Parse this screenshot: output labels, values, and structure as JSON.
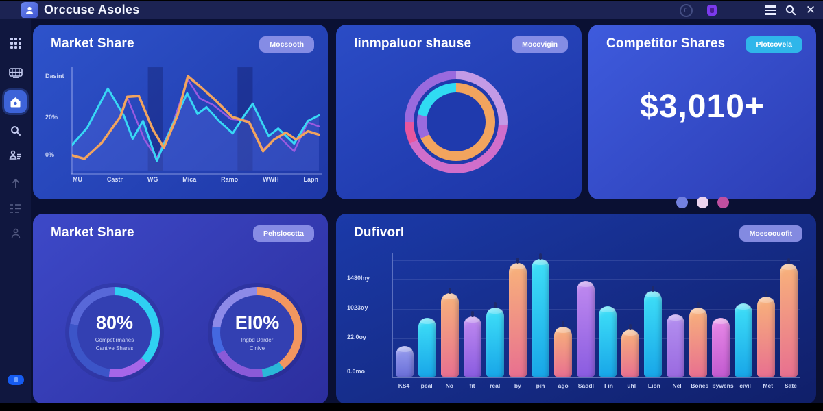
{
  "topbar": {
    "title": "Orccuse Asoles",
    "icons": [
      "help-icon",
      "notification-icon",
      "menu-icon",
      "search-icon",
      "close-icon"
    ]
  },
  "sidebar": {
    "items": [
      "apps-grid",
      "keyboard",
      "home",
      "search",
      "team",
      "upload",
      "tasks",
      "profile"
    ],
    "active": "home"
  },
  "cards": {
    "line": {
      "title": "Market Share",
      "badge": "Mocsooth"
    },
    "donut": {
      "title": "linmpaluor shause",
      "badge": "Mocovigin"
    },
    "metric": {
      "title": "Competitor Shares",
      "badge": "Plotcovela",
      "value": "$3,010+"
    },
    "gauges": {
      "title": "Market Share",
      "badge": "Pehslocctta",
      "g1": {
        "value": "80%",
        "line1": "Competirmaries",
        "line2": "Cantive Shares"
      },
      "g2": {
        "value": "EI0%",
        "line1": "Ingbd Darder",
        "line2": "Cinive"
      }
    },
    "bars": {
      "title": "Dufivorl",
      "badge": "Moesoouofit"
    }
  },
  "metric_dots": [
    "#7381e0",
    "#ecd4ef",
    "#bf4fa0"
  ],
  "chart_data": [
    {
      "id": "market-share-line",
      "type": "line",
      "title": "Market Share",
      "y_ticks": [
        "Dasint",
        "20%",
        "0%"
      ],
      "x_labels": [
        "MU",
        "Castr",
        "WG",
        "Mica",
        "Ramo",
        "WWH",
        "Lapn"
      ],
      "grid": "off",
      "legend": "none",
      "series": [
        {
          "name": "cyan",
          "color": "#38d8f5",
          "width": 3,
          "points": [
            [
              0,
              113
            ],
            [
              22,
              88
            ],
            [
              52,
              31
            ],
            [
              75,
              70
            ],
            [
              88,
              104
            ],
            [
              103,
              78
            ],
            [
              123,
              136
            ],
            [
              145,
              85
            ],
            [
              167,
              38
            ],
            [
              182,
              68
            ],
            [
              195,
              58
            ],
            [
              213,
              78
            ],
            [
              233,
              96
            ],
            [
              250,
              70
            ],
            [
              262,
              53
            ],
            [
              285,
              100
            ],
            [
              299,
              89
            ],
            [
              322,
              111
            ],
            [
              342,
              78
            ],
            [
              358,
              70
            ]
          ]
        },
        {
          "name": "orange",
          "color": "#f2a45e",
          "width": 3.5,
          "points": [
            [
              0,
              128
            ],
            [
              18,
              133
            ],
            [
              43,
              110
            ],
            [
              70,
              72
            ],
            [
              80,
              43
            ],
            [
              97,
              42
            ],
            [
              117,
              90
            ],
            [
              133,
              117
            ],
            [
              153,
              70
            ],
            [
              168,
              13
            ],
            [
              188,
              30
            ],
            [
              208,
              48
            ],
            [
              232,
              72
            ],
            [
              257,
              80
            ],
            [
              277,
              122
            ],
            [
              293,
              105
            ],
            [
              310,
              95
            ],
            [
              325,
              105
            ],
            [
              342,
              93
            ],
            [
              358,
              98
            ]
          ]
        },
        {
          "name": "purple",
          "color": "#9a5ae0",
          "width": 2.5,
          "points": [
            [
              80,
              44
            ],
            [
              105,
              105
            ],
            [
              123,
              132
            ],
            [
              145,
              85
            ],
            [
              168,
              18
            ],
            [
              185,
              45
            ],
            [
              205,
              55
            ],
            [
              230,
              75
            ],
            [
              255,
              78
            ],
            [
              277,
              120
            ],
            [
              299,
              100
            ],
            [
              322,
              122
            ],
            [
              342,
              80
            ],
            [
              358,
              86
            ]
          ]
        }
      ],
      "bands": [
        [
          110,
          22
        ],
        [
          240,
          22
        ]
      ]
    },
    {
      "id": "share-donut",
      "type": "pie",
      "title": "linmpaluor shause",
      "rings": {
        "outer": [
          {
            "color": "#c39ae6",
            "pct": 26
          },
          {
            "color": "#d06ecb",
            "pct": 42
          },
          {
            "color": "#e8569e",
            "pct": 7
          },
          {
            "color": "#9a6ade",
            "pct": 25
          }
        ],
        "inner": [
          {
            "color": "#f2a45e",
            "pct": 68
          },
          {
            "color": "#9a6ade",
            "pct": 10
          },
          {
            "color": "#30dbf2",
            "pct": 22
          }
        ]
      }
    },
    {
      "id": "gauge-1",
      "type": "pie",
      "value": "80%",
      "segments": [
        {
          "color": "#2fd0f2",
          "pct": 37
        },
        {
          "color": "#a566e8",
          "pct": 15
        },
        {
          "color": "#3c55c8",
          "pct": 26
        },
        {
          "color": "#5868d8",
          "pct": 22
        }
      ]
    },
    {
      "id": "gauge-2",
      "type": "pie",
      "value": "EI0%",
      "segments": [
        {
          "color": "#f2965f",
          "pct": 40
        },
        {
          "color": "#2ab8d8",
          "pct": 8
        },
        {
          "color": "#8a5ad8",
          "pct": 19
        },
        {
          "color": "#4468e0",
          "pct": 10
        },
        {
          "color": "#8d8ae8",
          "pct": 23
        }
      ]
    },
    {
      "id": "dufivorl-bars",
      "type": "bar",
      "title": "Dufivorl",
      "y_ticks": [
        "1480Iny",
        "1023oy",
        "22.0oy",
        "0.0mo"
      ],
      "ylim": [
        0,
        1540
      ],
      "categories": [
        "KS4",
        "peal",
        "No",
        "fit",
        "real",
        "by",
        "pih",
        "ago",
        "Saddl",
        "Fin",
        "uhl",
        "Lion",
        "Nel",
        "Bones",
        "bywens",
        "civil",
        "Met",
        "Sate"
      ],
      "values": [
        400,
        770,
        1090,
        790,
        900,
        1490,
        1540,
        655,
        1250,
        920,
        615,
        1120,
        815,
        900,
        770,
        960,
        1050,
        1480
      ],
      "colors": [
        "periwinkle",
        "cyan",
        "orange",
        "purple",
        "cyan",
        "orange",
        "cyan",
        "orange",
        "purple",
        "cyan",
        "orange",
        "cyan",
        "violet",
        "orange",
        "magenta",
        "cyan",
        "orange",
        "orange"
      ],
      "wicks": [
        false,
        false,
        true,
        true,
        true,
        true,
        true,
        true,
        false,
        false,
        true,
        true,
        false,
        true,
        false,
        false,
        true,
        true
      ]
    }
  ]
}
